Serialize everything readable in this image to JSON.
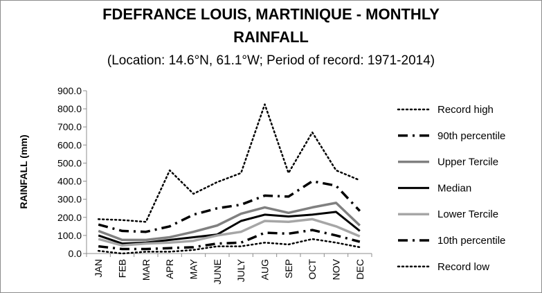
{
  "chart_data": {
    "type": "line",
    "title": "FDEFRANCE LOUIS, MARTINIQUE - MONTHLY RAINFALL",
    "title_line1": "FDEFRANCE LOUIS, MARTINIQUE - MONTHLY",
    "title_line2": "RAINFALL",
    "subtitle": "(Location: 14.6°N, 61.1°W; Period of record: 1971-2014)",
    "ylabel": "RAINFALL (mm)",
    "xlabel": "",
    "ylim": [
      0,
      900
    ],
    "yticks": [
      "0.0",
      "100.0",
      "200.0",
      "300.0",
      "400.0",
      "500.0",
      "600.0",
      "700.0",
      "800.0",
      "900.0"
    ],
    "categories": [
      "JAN",
      "FEB",
      "MAR",
      "APR",
      "MAY",
      "JUNE",
      "JULY",
      "AUG",
      "SEP",
      "OCT",
      "NOV",
      "DEC"
    ],
    "grid": false,
    "legend_position": "right",
    "series": [
      {
        "name": "Record high",
        "style": "dotted",
        "color": "#000000",
        "width": 2.5,
        "values": [
          190,
          185,
          175,
          460,
          330,
          395,
          445,
          825,
          445,
          670,
          460,
          405
        ]
      },
      {
        "name": "90th percentile",
        "style": "dashdot",
        "color": "#000000",
        "width": 3.5,
        "values": [
          160,
          125,
          120,
          150,
          215,
          250,
          270,
          320,
          315,
          400,
          375,
          235
        ]
      },
      {
        "name": "Upper Tercile",
        "style": "solid",
        "color": "#808080",
        "width": 3.5,
        "values": [
          125,
          75,
          75,
          90,
          120,
          155,
          220,
          255,
          225,
          255,
          280,
          155
        ]
      },
      {
        "name": "Median",
        "style": "solid",
        "color": "#000000",
        "width": 3,
        "values": [
          100,
          55,
          60,
          75,
          90,
          105,
          180,
          215,
          205,
          215,
          230,
          125
        ]
      },
      {
        "name": "Lower Tercile",
        "style": "solid",
        "color": "#a6a6a6",
        "width": 3.5,
        "values": [
          80,
          45,
          55,
          60,
          70,
          100,
          120,
          180,
          175,
          190,
          150,
          95
        ]
      },
      {
        "name": "10th percentile",
        "style": "dashdot",
        "color": "#000000",
        "width": 3.5,
        "values": [
          40,
          25,
          25,
          30,
          35,
          55,
          60,
          115,
          110,
          130,
          100,
          65
        ]
      },
      {
        "name": "Record low",
        "style": "dotted",
        "color": "#000000",
        "width": 2.5,
        "values": [
          15,
          0,
          10,
          10,
          20,
          40,
          40,
          60,
          50,
          80,
          60,
          35
        ]
      }
    ]
  }
}
